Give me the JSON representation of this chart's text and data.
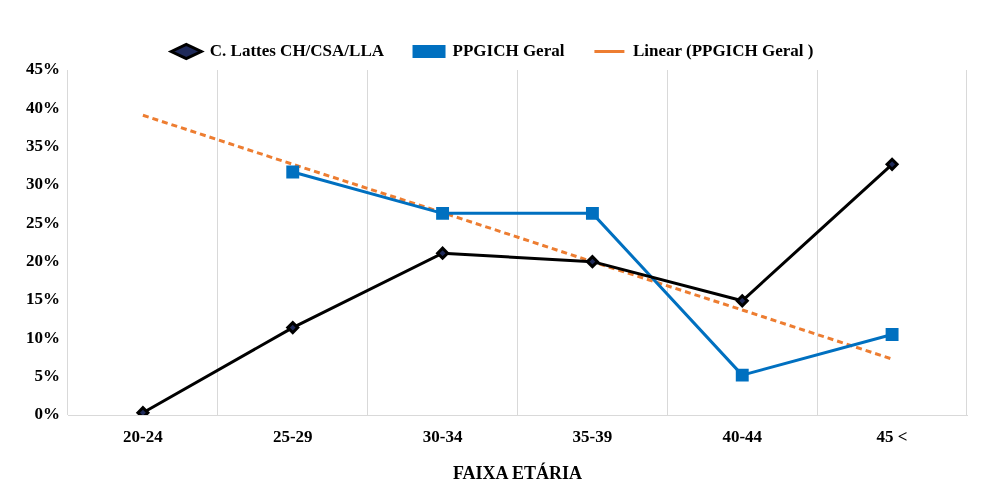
{
  "chart_data": {
    "type": "line",
    "xlabel": "FAIXA ETÁRIA",
    "categories": [
      "20-24",
      "25-29",
      "30-34",
      "35-39",
      "40-44",
      "45 <"
    ],
    "series": [
      {
        "name": "C. Lattes CH/CSA/LLA",
        "color": "#000000",
        "marker": "diamond",
        "line_style": "solid",
        "values": [
          0.3,
          11.4,
          21.1,
          20.0,
          14.9,
          32.7
        ]
      },
      {
        "name": "PPGICH Geral",
        "color": "#0070c0",
        "marker": "square",
        "line_style": "solid",
        "values": [
          null,
          31.7,
          26.3,
          26.3,
          5.2,
          10.5
        ]
      },
      {
        "name": "Linear (PPGICH Geral )",
        "color": "#ed7d31",
        "marker": "none",
        "line_style": "dashed",
        "values": [
          39.1,
          32.7,
          26.4,
          20.0,
          13.7,
          7.3
        ]
      }
    ],
    "ylim": [
      0,
      45
    ],
    "yticks": [
      {
        "value": 0,
        "label": "0%"
      },
      {
        "value": 5,
        "label": "5%"
      },
      {
        "value": 10,
        "label": "10%"
      },
      {
        "value": 15,
        "label": "15%"
      },
      {
        "value": 20,
        "label": "20%"
      },
      {
        "value": 25,
        "label": "25%"
      },
      {
        "value": 30,
        "label": "30%"
      },
      {
        "value": 35,
        "label": "35%"
      },
      {
        "value": 40,
        "label": "40%"
      },
      {
        "value": 45,
        "label": "45%"
      }
    ],
    "grid": "x",
    "legend": "top"
  }
}
